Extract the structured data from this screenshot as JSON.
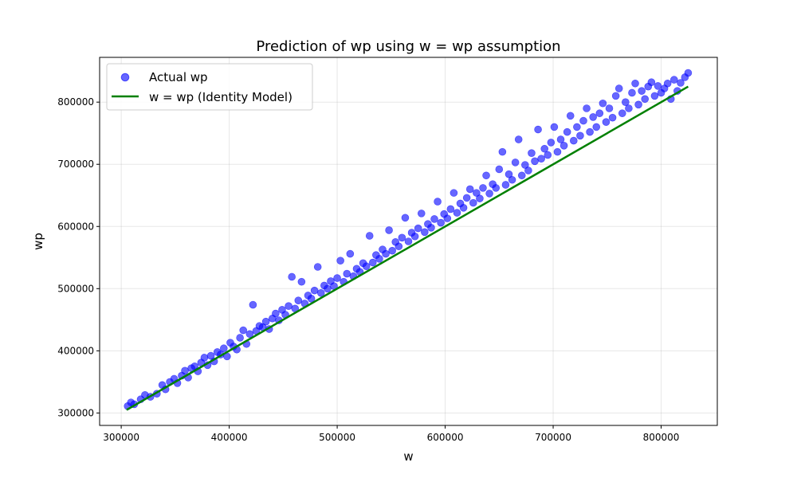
{
  "chart_data": {
    "type": "scatter",
    "title": "Prediction of wp using w = wp assumption",
    "xlabel": "w",
    "ylabel": "wp",
    "xlim": [
      280000,
      852000
    ],
    "ylim": [
      280000,
      872000
    ],
    "xticks": [
      300000,
      400000,
      500000,
      600000,
      700000,
      800000
    ],
    "yticks": [
      300000,
      400000,
      500000,
      600000,
      700000,
      800000
    ],
    "xtick_labels": [
      "300000",
      "400000",
      "500000",
      "600000",
      "700000",
      "800000"
    ],
    "ytick_labels": [
      "300000",
      "400000",
      "500000",
      "600000",
      "700000",
      "800000"
    ],
    "grid": true,
    "legend_position": "top-left",
    "series": [
      {
        "name": "Actual wp",
        "kind": "scatter",
        "color": "#0000ff",
        "alpha": 0.6,
        "points": [
          [
            306000,
            311000
          ],
          [
            309000,
            317000
          ],
          [
            312000,
            314000
          ],
          [
            318000,
            322000
          ],
          [
            322000,
            329000
          ],
          [
            327000,
            326000
          ],
          [
            333000,
            331000
          ],
          [
            338000,
            345000
          ],
          [
            341000,
            338000
          ],
          [
            345000,
            350000
          ],
          [
            349000,
            355000
          ],
          [
            352000,
            348000
          ],
          [
            356000,
            360000
          ],
          [
            359000,
            368000
          ],
          [
            362000,
            357000
          ],
          [
            365000,
            372000
          ],
          [
            368000,
            375000
          ],
          [
            371000,
            367000
          ],
          [
            374000,
            381000
          ],
          [
            377000,
            389000
          ],
          [
            380000,
            377000
          ],
          [
            383000,
            392000
          ],
          [
            386000,
            383000
          ],
          [
            389000,
            398000
          ],
          [
            392000,
            394000
          ],
          [
            395000,
            404000
          ],
          [
            398000,
            391000
          ],
          [
            401000,
            413000
          ],
          [
            404000,
            407000
          ],
          [
            407000,
            402000
          ],
          [
            410000,
            421000
          ],
          [
            413000,
            433000
          ],
          [
            416000,
            411000
          ],
          [
            419000,
            427000
          ],
          [
            422000,
            474000
          ],
          [
            425000,
            432000
          ],
          [
            428000,
            440000
          ],
          [
            431000,
            438000
          ],
          [
            434000,
            447000
          ],
          [
            437000,
            435000
          ],
          [
            440000,
            452000
          ],
          [
            443000,
            460000
          ],
          [
            446000,
            449000
          ],
          [
            449000,
            466000
          ],
          [
            452000,
            458000
          ],
          [
            455000,
            472000
          ],
          [
            458000,
            519000
          ],
          [
            461000,
            468000
          ],
          [
            464000,
            481000
          ],
          [
            467000,
            511000
          ],
          [
            470000,
            476000
          ],
          [
            473000,
            489000
          ],
          [
            476000,
            484000
          ],
          [
            479000,
            497000
          ],
          [
            482000,
            535000
          ],
          [
            485000,
            493000
          ],
          [
            488000,
            505000
          ],
          [
            491000,
            500000
          ],
          [
            494000,
            512000
          ],
          [
            497000,
            504000
          ],
          [
            500000,
            517000
          ],
          [
            503000,
            545000
          ],
          [
            506000,
            511000
          ],
          [
            509000,
            524000
          ],
          [
            512000,
            556000
          ],
          [
            515000,
            520000
          ],
          [
            518000,
            532000
          ],
          [
            521000,
            527000
          ],
          [
            524000,
            541000
          ],
          [
            527000,
            536000
          ],
          [
            530000,
            585000
          ],
          [
            533000,
            542000
          ],
          [
            536000,
            554000
          ],
          [
            539000,
            548000
          ],
          [
            542000,
            563000
          ],
          [
            545000,
            556000
          ],
          [
            548000,
            594000
          ],
          [
            551000,
            561000
          ],
          [
            554000,
            575000
          ],
          [
            557000,
            568000
          ],
          [
            560000,
            582000
          ],
          [
            563000,
            614000
          ],
          [
            566000,
            576000
          ],
          [
            569000,
            590000
          ],
          [
            572000,
            584000
          ],
          [
            575000,
            597000
          ],
          [
            578000,
            621000
          ],
          [
            581000,
            591000
          ],
          [
            584000,
            604000
          ],
          [
            587000,
            598000
          ],
          [
            590000,
            612000
          ],
          [
            593000,
            640000
          ],
          [
            596000,
            606000
          ],
          [
            599000,
            620000
          ],
          [
            602000,
            613000
          ],
          [
            605000,
            628000
          ],
          [
            608000,
            654000
          ],
          [
            611000,
            622000
          ],
          [
            614000,
            637000
          ],
          [
            617000,
            630000
          ],
          [
            620000,
            646000
          ],
          [
            623000,
            660000
          ],
          [
            626000,
            638000
          ],
          [
            629000,
            654000
          ],
          [
            632000,
            645000
          ],
          [
            635000,
            662000
          ],
          [
            638000,
            682000
          ],
          [
            641000,
            653000
          ],
          [
            644000,
            668000
          ],
          [
            647000,
            662000
          ],
          [
            650000,
            692000
          ],
          [
            653000,
            720000
          ],
          [
            656000,
            667000
          ],
          [
            659000,
            684000
          ],
          [
            662000,
            675000
          ],
          [
            665000,
            703000
          ],
          [
            668000,
            740000
          ],
          [
            671000,
            682000
          ],
          [
            674000,
            699000
          ],
          [
            677000,
            690000
          ],
          [
            680000,
            718000
          ],
          [
            683000,
            705000
          ],
          [
            686000,
            756000
          ],
          [
            689000,
            709000
          ],
          [
            692000,
            725000
          ],
          [
            695000,
            715000
          ],
          [
            698000,
            735000
          ],
          [
            701000,
            760000
          ],
          [
            704000,
            720000
          ],
          [
            707000,
            740000
          ],
          [
            710000,
            730000
          ],
          [
            713000,
            752000
          ],
          [
            716000,
            778000
          ],
          [
            719000,
            738000
          ],
          [
            722000,
            760000
          ],
          [
            725000,
            746000
          ],
          [
            728000,
            770000
          ],
          [
            731000,
            790000
          ],
          [
            734000,
            752000
          ],
          [
            737000,
            776000
          ],
          [
            740000,
            760000
          ],
          [
            743000,
            782000
          ],
          [
            746000,
            798000
          ],
          [
            749000,
            768000
          ],
          [
            752000,
            790000
          ],
          [
            755000,
            775000
          ],
          [
            758000,
            810000
          ],
          [
            761000,
            822000
          ],
          [
            764000,
            782000
          ],
          [
            767000,
            800000
          ],
          [
            770000,
            790000
          ],
          [
            773000,
            815000
          ],
          [
            776000,
            830000
          ],
          [
            779000,
            796000
          ],
          [
            782000,
            818000
          ],
          [
            785000,
            805000
          ],
          [
            788000,
            825000
          ],
          [
            791000,
            832000
          ],
          [
            794000,
            810000
          ],
          [
            797000,
            826000
          ],
          [
            800000,
            815000
          ],
          [
            803000,
            822000
          ],
          [
            806000,
            830000
          ],
          [
            809000,
            805000
          ],
          [
            812000,
            836000
          ],
          [
            815000,
            818000
          ],
          [
            818000,
            831000
          ],
          [
            822000,
            840000
          ],
          [
            825000,
            847000
          ]
        ]
      },
      {
        "name": "w = wp (Identity Model)",
        "kind": "line",
        "color": "#008000",
        "x": [
          305000,
          825000
        ],
        "y": [
          305000,
          825000
        ]
      }
    ]
  }
}
